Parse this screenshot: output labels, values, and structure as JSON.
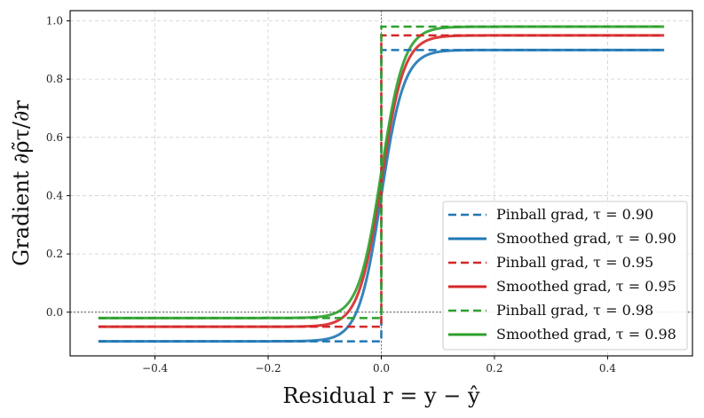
{
  "chart_data": {
    "type": "line",
    "xlabel": "Residual r = y − ŷ",
    "ylabel": "Gradient ∂ρ̃τ/∂r",
    "xlim": [
      -0.55,
      0.55
    ],
    "ylim": [
      -0.15,
      1.035
    ],
    "xticks": [
      -0.4,
      -0.2,
      0.0,
      0.2,
      0.4
    ],
    "xtick_labels": [
      "−0.4",
      "−0.2",
      "0.0",
      "0.2",
      "0.4"
    ],
    "yticks": [
      0.0,
      0.2,
      0.4,
      0.6,
      0.8,
      1.0
    ],
    "ytick_labels": [
      "0.0",
      "0.2",
      "0.4",
      "0.6",
      "0.8",
      "1.0"
    ],
    "grid": true,
    "legend_position": "lower-right",
    "x_range": [
      -0.5,
      0.5
    ],
    "reference_lines": {
      "vertical_x": 0.0,
      "horizontal_y": 0.0
    },
    "smoothing_scale": 0.02,
    "series": [
      {
        "name": "Pinball grad, τ = 0.90",
        "kind": "pinball",
        "tau": 0.9,
        "color": "#1f77b4",
        "dashed": true
      },
      {
        "name": "Smoothed grad, τ = 0.90",
        "kind": "smoothed",
        "tau": 0.9,
        "color": "#1f77b4",
        "dashed": false
      },
      {
        "name": "Pinball grad, τ = 0.95",
        "kind": "pinball",
        "tau": 0.95,
        "color": "#d62728",
        "dashed": true
      },
      {
        "name": "Smoothed grad, τ = 0.95",
        "kind": "smoothed",
        "tau": 0.95,
        "color": "#d62728",
        "dashed": false
      },
      {
        "name": "Pinball grad, τ = 0.98",
        "kind": "pinball",
        "tau": 0.98,
        "color": "#2ca02c",
        "dashed": true
      },
      {
        "name": "Smoothed grad, τ = 0.98",
        "kind": "smoothed",
        "tau": 0.98,
        "color": "#2ca02c",
        "dashed": false
      }
    ]
  }
}
